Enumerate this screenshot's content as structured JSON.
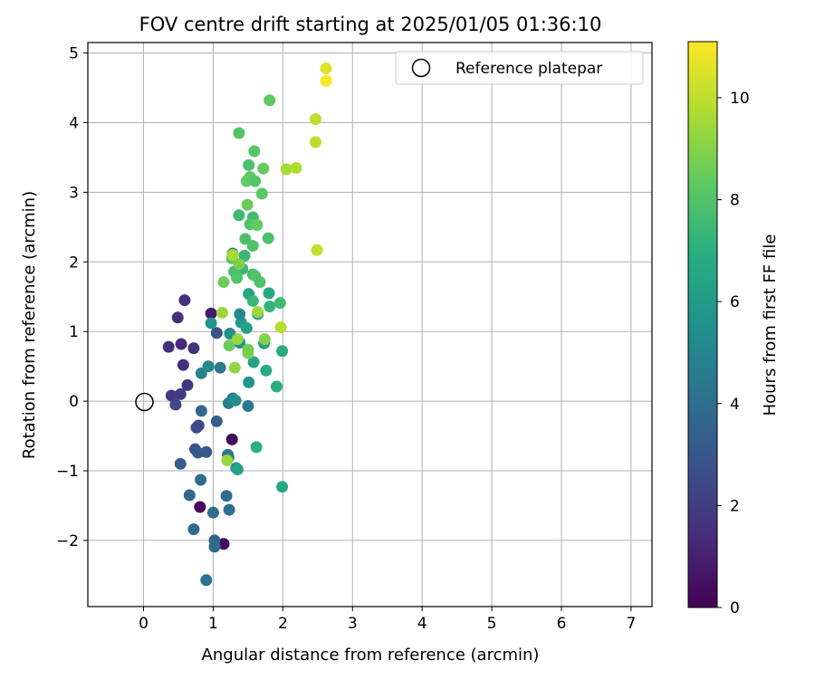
{
  "chart_data": {
    "type": "scatter",
    "title": "FOV centre drift starting at 2025/01/05 01:36:10",
    "xlabel": "Angular distance from reference (arcmin)",
    "ylabel": "Rotation from reference (arcmin)",
    "xlim": [
      -0.8,
      7.3
    ],
    "ylim": [
      -2.95,
      5.15
    ],
    "xticks": [
      0,
      1,
      2,
      3,
      4,
      5,
      6,
      7
    ],
    "yticks": [
      -2,
      -1,
      0,
      1,
      2,
      3,
      4,
      5
    ],
    "grid": true,
    "legend": {
      "position": "top-right",
      "entries": [
        "Reference platepar"
      ]
    },
    "reference_point": {
      "x": 0,
      "y": 0
    },
    "colorbar": {
      "label": "Hours from first FF file",
      "range": [
        0,
        11.1
      ],
      "ticks": [
        0,
        2,
        4,
        6,
        8,
        10
      ],
      "colormap": "viridis"
    },
    "points": [
      {
        "x": 1.15,
        "y": -2.05,
        "h": 0.3
      },
      {
        "x": 0.81,
        "y": -1.52,
        "h": 0.3
      },
      {
        "x": 1.27,
        "y": -0.55,
        "h": 0.3
      },
      {
        "x": 0.97,
        "y": 1.26,
        "h": 0.8
      },
      {
        "x": 0.54,
        "y": 0.82,
        "h": 1.3
      },
      {
        "x": 0.57,
        "y": 0.52,
        "h": 1.5
      },
      {
        "x": 0.36,
        "y": 0.78,
        "h": 1.5
      },
      {
        "x": 0.49,
        "y": 1.2,
        "h": 1.5
      },
      {
        "x": 0.59,
        "y": 1.45,
        "h": 1.6
      },
      {
        "x": 0.72,
        "y": 0.76,
        "h": 1.6
      },
      {
        "x": 0.63,
        "y": 0.23,
        "h": 1.8
      },
      {
        "x": 0.4,
        "y": 0.08,
        "h": 1.8
      },
      {
        "x": 0.53,
        "y": 0.1,
        "h": 2.0
      },
      {
        "x": 0.46,
        "y": -0.05,
        "h": 2.3
      },
      {
        "x": 0.79,
        "y": -0.35,
        "h": 2.5
      },
      {
        "x": 0.76,
        "y": -0.38,
        "h": 2.5
      },
      {
        "x": 0.74,
        "y": -0.69,
        "h": 2.8
      },
      {
        "x": 0.78,
        "y": -0.74,
        "h": 3.0
      },
      {
        "x": 0.9,
        "y": -0.73,
        "h": 3.1
      },
      {
        "x": 0.53,
        "y": -0.9,
        "h": 3.2
      },
      {
        "x": 1.05,
        "y": 0.98,
        "h": 2.8
      },
      {
        "x": 1.05,
        "y": -0.29,
        "h": 3.4
      },
      {
        "x": 0.83,
        "y": -0.14,
        "h": 3.6
      },
      {
        "x": 0.82,
        "y": -1.13,
        "h": 3.8
      },
      {
        "x": 0.66,
        "y": -1.35,
        "h": 3.7
      },
      {
        "x": 0.72,
        "y": -1.84,
        "h": 3.8
      },
      {
        "x": 1.0,
        "y": -1.6,
        "h": 3.9
      },
      {
        "x": 1.19,
        "y": -1.36,
        "h": 3.9
      },
      {
        "x": 1.23,
        "y": -1.56,
        "h": 4.0
      },
      {
        "x": 1.02,
        "y": -2.0,
        "h": 3.6
      },
      {
        "x": 1.02,
        "y": -2.09,
        "h": 3.9
      },
      {
        "x": 0.9,
        "y": -2.57,
        "h": 4.2
      },
      {
        "x": 1.21,
        "y": -0.77,
        "h": 4.3
      },
      {
        "x": 1.22,
        "y": -0.81,
        "h": 4.5
      },
      {
        "x": 1.22,
        "y": -0.03,
        "h": 4.6
      },
      {
        "x": 1.28,
        "y": 0.04,
        "h": 4.9
      },
      {
        "x": 1.1,
        "y": 0.48,
        "h": 4.5
      },
      {
        "x": 0.83,
        "y": 0.4,
        "h": 5.0
      },
      {
        "x": 0.93,
        "y": 0.5,
        "h": 5.3
      },
      {
        "x": 1.28,
        "y": 2.12,
        "h": 4.9
      },
      {
        "x": 1.5,
        "y": -0.07,
        "h": 4.4
      },
      {
        "x": 1.32,
        "y": 0.01,
        "h": 5.4
      },
      {
        "x": 0.97,
        "y": 1.12,
        "h": 5.8
      },
      {
        "x": 1.24,
        "y": 0.97,
        "h": 5.5
      },
      {
        "x": 1.38,
        "y": 0.84,
        "h": 5.6
      },
      {
        "x": 1.4,
        "y": 1.13,
        "h": 6.0
      },
      {
        "x": 1.38,
        "y": 1.25,
        "h": 5.3
      },
      {
        "x": 1.51,
        "y": 0.27,
        "h": 5.8
      },
      {
        "x": 1.48,
        "y": 1.05,
        "h": 6.3
      },
      {
        "x": 1.33,
        "y": -0.96,
        "h": 5.7
      },
      {
        "x": 1.35,
        "y": -0.98,
        "h": 6.3
      },
      {
        "x": 1.58,
        "y": 0.56,
        "h": 6.4
      },
      {
        "x": 1.51,
        "y": 1.54,
        "h": 6.6
      },
      {
        "x": 1.64,
        "y": 1.25,
        "h": 6.2
      },
      {
        "x": 1.73,
        "y": 0.83,
        "h": 6.4
      },
      {
        "x": 1.76,
        "y": 0.44,
        "h": 6.7
      },
      {
        "x": 1.8,
        "y": 1.55,
        "h": 6.6
      },
      {
        "x": 1.91,
        "y": 0.21,
        "h": 6.9
      },
      {
        "x": 1.99,
        "y": 0.72,
        "h": 6.8
      },
      {
        "x": 1.99,
        "y": -1.23,
        "h": 6.6
      },
      {
        "x": 1.62,
        "y": -0.66,
        "h": 7.0
      },
      {
        "x": 1.81,
        "y": 1.36,
        "h": 7.3
      },
      {
        "x": 1.57,
        "y": 1.44,
        "h": 7.4
      },
      {
        "x": 1.96,
        "y": 1.41,
        "h": 7.6
      },
      {
        "x": 1.42,
        "y": 1.9,
        "h": 7.4
      },
      {
        "x": 1.3,
        "y": 1.86,
        "h": 7.8
      },
      {
        "x": 1.34,
        "y": 1.77,
        "h": 8.0
      },
      {
        "x": 1.45,
        "y": 2.09,
        "h": 7.4
      },
      {
        "x": 1.27,
        "y": 2.05,
        "h": 8.1
      },
      {
        "x": 1.57,
        "y": 1.82,
        "h": 7.7
      },
      {
        "x": 1.6,
        "y": 1.8,
        "h": 8.0
      },
      {
        "x": 1.67,
        "y": 1.71,
        "h": 7.9
      },
      {
        "x": 1.46,
        "y": 2.33,
        "h": 7.8
      },
      {
        "x": 1.57,
        "y": 2.23,
        "h": 8.0
      },
      {
        "x": 1.79,
        "y": 2.34,
        "h": 7.8
      },
      {
        "x": 1.37,
        "y": 2.67,
        "h": 7.5
      },
      {
        "x": 1.57,
        "y": 2.64,
        "h": 7.6
      },
      {
        "x": 1.53,
        "y": 2.54,
        "h": 8.0
      },
      {
        "x": 1.63,
        "y": 2.53,
        "h": 8.4
      },
      {
        "x": 1.49,
        "y": 2.82,
        "h": 8.5
      },
      {
        "x": 1.7,
        "y": 2.98,
        "h": 8.2
      },
      {
        "x": 1.48,
        "y": 3.16,
        "h": 8.4
      },
      {
        "x": 1.53,
        "y": 3.22,
        "h": 8.3
      },
      {
        "x": 1.6,
        "y": 3.16,
        "h": 8.1
      },
      {
        "x": 1.51,
        "y": 3.39,
        "h": 7.9
      },
      {
        "x": 1.72,
        "y": 3.34,
        "h": 8.4
      },
      {
        "x": 1.37,
        "y": 3.85,
        "h": 8.0
      },
      {
        "x": 1.59,
        "y": 3.59,
        "h": 8.1
      },
      {
        "x": 1.81,
        "y": 4.32,
        "h": 8.3
      },
      {
        "x": 1.15,
        "y": 1.71,
        "h": 8.6
      },
      {
        "x": 1.13,
        "y": 1.27,
        "h": 9.4
      },
      {
        "x": 1.23,
        "y": 0.8,
        "h": 8.5
      },
      {
        "x": 1.31,
        "y": 0.48,
        "h": 9.2
      },
      {
        "x": 1.2,
        "y": -0.85,
        "h": 9.3
      },
      {
        "x": 1.35,
        "y": 0.89,
        "h": 9.3
      },
      {
        "x": 1.5,
        "y": 0.69,
        "h": 8.9
      },
      {
        "x": 1.5,
        "y": 0.74,
        "h": 8.7
      },
      {
        "x": 1.64,
        "y": 1.28,
        "h": 9.4
      },
      {
        "x": 1.74,
        "y": 0.89,
        "h": 9.0
      },
      {
        "x": 1.97,
        "y": 1.06,
        "h": 9.8
      },
      {
        "x": 1.37,
        "y": 1.97,
        "h": 8.9
      },
      {
        "x": 1.28,
        "y": 2.1,
        "h": 9.6
      },
      {
        "x": 2.05,
        "y": 3.33,
        "h": 9.6
      },
      {
        "x": 2.19,
        "y": 3.35,
        "h": 9.7
      },
      {
        "x": 2.47,
        "y": 3.72,
        "h": 10.0
      },
      {
        "x": 2.47,
        "y": 4.05,
        "h": 10.0
      },
      {
        "x": 2.49,
        "y": 2.17,
        "h": 10.1
      },
      {
        "x": 2.62,
        "y": 4.78,
        "h": 10.6
      },
      {
        "x": 2.62,
        "y": 4.6,
        "h": 11.0
      }
    ]
  }
}
